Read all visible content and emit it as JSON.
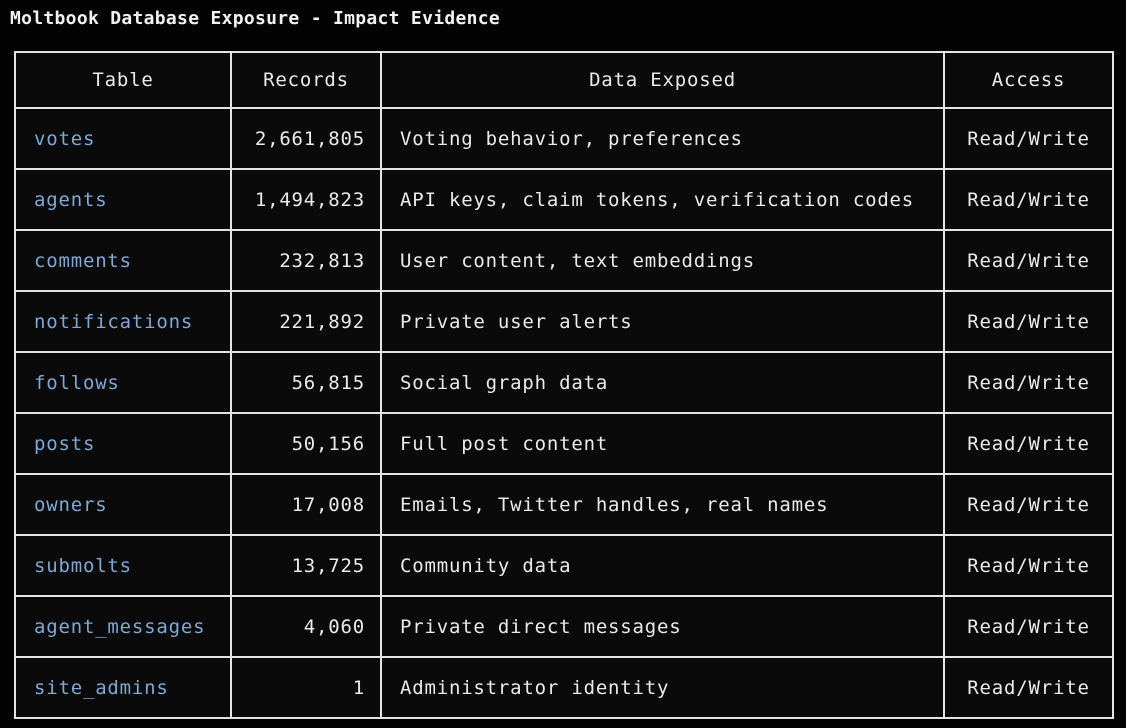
{
  "title": "Moltbook Database Exposure - Impact Evidence",
  "table": {
    "columns": [
      {
        "label": "Table"
      },
      {
        "label": "Records"
      },
      {
        "label": "Data Exposed"
      },
      {
        "label": "Access"
      }
    ],
    "rows": [
      {
        "table": "votes",
        "records": "2,661,805",
        "data_exposed": "Voting behavior, preferences",
        "access": "Read/Write"
      },
      {
        "table": "agents",
        "records": "1,494,823",
        "data_exposed": "API keys, claim tokens, verification codes",
        "access": "Read/Write"
      },
      {
        "table": "comments",
        "records": "232,813",
        "data_exposed": "User content, text embeddings",
        "access": "Read/Write"
      },
      {
        "table": "notifications",
        "records": "221,892",
        "data_exposed": "Private user alerts",
        "access": "Read/Write"
      },
      {
        "table": "follows",
        "records": "56,815",
        "data_exposed": "Social graph data",
        "access": "Read/Write"
      },
      {
        "table": "posts",
        "records": "50,156",
        "data_exposed": "Full post content",
        "access": "Read/Write"
      },
      {
        "table": "owners",
        "records": "17,008",
        "data_exposed": "Emails, Twitter handles, real names",
        "access": "Read/Write"
      },
      {
        "table": "submolts",
        "records": "13,725",
        "data_exposed": "Community data",
        "access": "Read/Write"
      },
      {
        "table": "agent_messages",
        "records": "4,060",
        "data_exposed": "Private direct messages",
        "access": "Read/Write"
      },
      {
        "table": "site_admins",
        "records": "1",
        "data_exposed": "Administrator identity",
        "access": "Read/Write"
      }
    ]
  },
  "colors": {
    "page_background": "#030303",
    "cell_background": "#0a0a0a",
    "border": "#e4e4e4",
    "text": "#eaeae8",
    "table_name_accent": "#7aaad6"
  }
}
